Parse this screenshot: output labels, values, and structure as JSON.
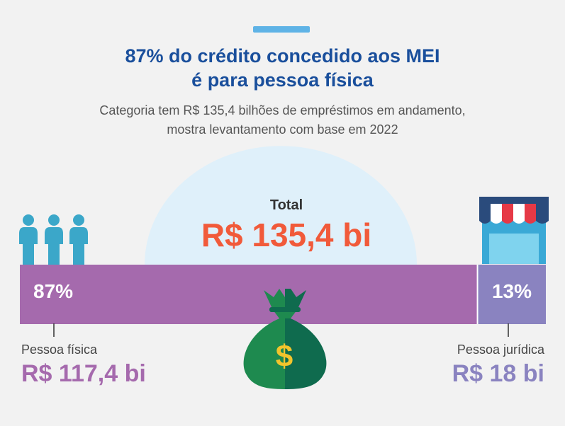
{
  "header": {
    "title_line1": "87% do crédito concedido aos MEI",
    "title_line2": "é para pessoa física",
    "subtitle_line1": "Categoria tem R$ 135,4 bilhões de empréstimos em andamento,",
    "subtitle_line2": "mostra levantamento com base em 2022"
  },
  "chart_data": {
    "type": "bar",
    "orientation": "horizontal-stacked",
    "total": {
      "label": "Total",
      "value_label": "R$ 135,4 bi",
      "value": 135.4
    },
    "segments": [
      {
        "category": "Pessoa física",
        "percent": 87,
        "percent_label": "87%",
        "value": 117.4,
        "value_label": "R$ 117,4 bi",
        "color": "#a56aad"
      },
      {
        "category": "Pessoa jurídica",
        "percent": 13,
        "percent_label": "13%",
        "value": 18,
        "value_label": "R$ 18 bi",
        "color": "#8a83c0"
      }
    ]
  },
  "colors": {
    "title": "#1a4f9c",
    "accent": "#5fb3e6",
    "total_value": "#f15a3a",
    "dome": "#dff0fa",
    "people_icon": "#3ba7c9",
    "money_bag": "#1e8a4f",
    "money_bag_dark": "#0f6b4e",
    "dollar": "#f2c42c"
  },
  "icons": {
    "people": "people-icon",
    "store": "store-icon",
    "money_bag": "money-bag-icon"
  }
}
